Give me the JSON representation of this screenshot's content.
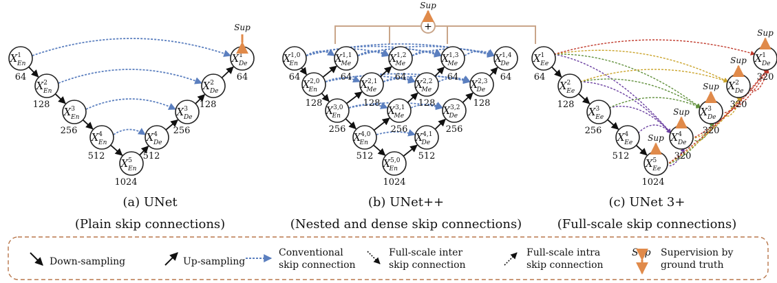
{
  "panels": {
    "unet": {
      "caption": "(a) UNet",
      "subcaption": "(Plain skip connections)",
      "nodes": [
        {
          "id": "e1",
          "base": "X",
          "sup": "1",
          "sub": "En",
          "num": "64"
        },
        {
          "id": "e2",
          "base": "X",
          "sup": "2",
          "sub": "En",
          "num": "128"
        },
        {
          "id": "e3",
          "base": "X",
          "sup": "3",
          "sub": "En",
          "num": "256"
        },
        {
          "id": "e4",
          "base": "X",
          "sup": "4",
          "sub": "En",
          "num": "512"
        },
        {
          "id": "e5",
          "base": "X",
          "sup": "5",
          "sub": "En",
          "num": "1024"
        },
        {
          "id": "d4",
          "base": "X",
          "sup": "4",
          "sub": "De",
          "num": "512"
        },
        {
          "id": "d3",
          "base": "X",
          "sup": "3",
          "sub": "De",
          "num": "256"
        },
        {
          "id": "d2",
          "base": "X",
          "sup": "2",
          "sub": "De",
          "num": "128"
        },
        {
          "id": "d1",
          "base": "X",
          "sup": "1",
          "sub": "De",
          "num": "64"
        }
      ],
      "sup_label": "Sup"
    },
    "unetpp": {
      "caption": "(b) UNet++",
      "subcaption": "(Nested and dense skip connections)",
      "nodes": [
        {
          "id": "n00",
          "base": "X",
          "sup": "1,0",
          "sub": "En",
          "num": "64"
        },
        {
          "id": "n01",
          "base": "X",
          "sup": "1,1",
          "sub": "Me",
          "num": "64"
        },
        {
          "id": "n02",
          "base": "X",
          "sup": "1,2",
          "sub": "Me",
          "num": "64"
        },
        {
          "id": "n03",
          "base": "X",
          "sup": "1,3",
          "sub": "Me",
          "num": "64"
        },
        {
          "id": "n04",
          "base": "X",
          "sup": "1,4",
          "sub": "De",
          "num": "64"
        },
        {
          "id": "n10",
          "base": "X",
          "sup": "2,0",
          "sub": "En",
          "num": "128"
        },
        {
          "id": "n11",
          "base": "X",
          "sup": "2,1",
          "sub": "Me",
          "num": "128"
        },
        {
          "id": "n12",
          "base": "X",
          "sup": "2,2",
          "sub": "Me",
          "num": "128"
        },
        {
          "id": "n13",
          "base": "X",
          "sup": "2,3",
          "sub": "De",
          "num": "128"
        },
        {
          "id": "n20",
          "base": "X",
          "sup": "3,0",
          "sub": "En",
          "num": "256"
        },
        {
          "id": "n21",
          "base": "X",
          "sup": "3,1",
          "sub": "Me",
          "num": "256"
        },
        {
          "id": "n22",
          "base": "X",
          "sup": "3,2",
          "sub": "De",
          "num": "256"
        },
        {
          "id": "n30",
          "base": "X",
          "sup": "4,0",
          "sub": "En",
          "num": "512"
        },
        {
          "id": "n31",
          "base": "X",
          "sup": "4,1",
          "sub": "De",
          "num": "512"
        },
        {
          "id": "n40",
          "base": "X",
          "sup": "5,0",
          "sub": "En",
          "num": "1024"
        }
      ],
      "sup_label": "Sup",
      "plus_symbol": "+"
    },
    "unet3p": {
      "caption": "(c) UNet 3+",
      "subcaption": "(Full-scale skip connections)",
      "nodes": [
        {
          "id": "e1",
          "base": "X",
          "sup": "1",
          "sub": "Ee",
          "num": "64"
        },
        {
          "id": "e2",
          "base": "X",
          "sup": "2",
          "sub": "Ee",
          "num": "128"
        },
        {
          "id": "e3",
          "base": "X",
          "sup": "3",
          "sub": "Ee",
          "num": "256"
        },
        {
          "id": "e4",
          "base": "X",
          "sup": "4",
          "sub": "Ee",
          "num": "512"
        },
        {
          "id": "e5",
          "base": "X",
          "sup": "5",
          "sub": "Ee",
          "num": "1024"
        },
        {
          "id": "d4",
          "base": "X",
          "sup": "4",
          "sub": "De",
          "num": "320"
        },
        {
          "id": "d3",
          "base": "X",
          "sup": "3",
          "sub": "De",
          "num": "320"
        },
        {
          "id": "d2",
          "base": "X",
          "sup": "2",
          "sub": "De",
          "num": "320"
        },
        {
          "id": "d1",
          "base": "X",
          "sup": "1",
          "sub": "De",
          "num": "320"
        }
      ],
      "sup_label": "Sup"
    }
  },
  "legend": {
    "down": "Down-sampling",
    "up": "Up-sampling",
    "conv_1": "Conventional",
    "conv_2": "skip connection",
    "inter_1": "Full-scale inter",
    "inter_2": "skip connection",
    "intra_1": "Full-scale intra",
    "intra_2": "skip connection",
    "sup_label": "Sup",
    "sup_1": "Supervision by",
    "sup_2": "ground truth"
  },
  "colors": {
    "conventional_skip": "#5b7fbf",
    "supervision": "#e08a4a",
    "deep_sup_box": "#c9a589",
    "legend_border": "#b8764a",
    "inter_colors": [
      "#6a3fa0",
      "#5f8f3a",
      "#c9a227",
      "#c0392b"
    ]
  }
}
